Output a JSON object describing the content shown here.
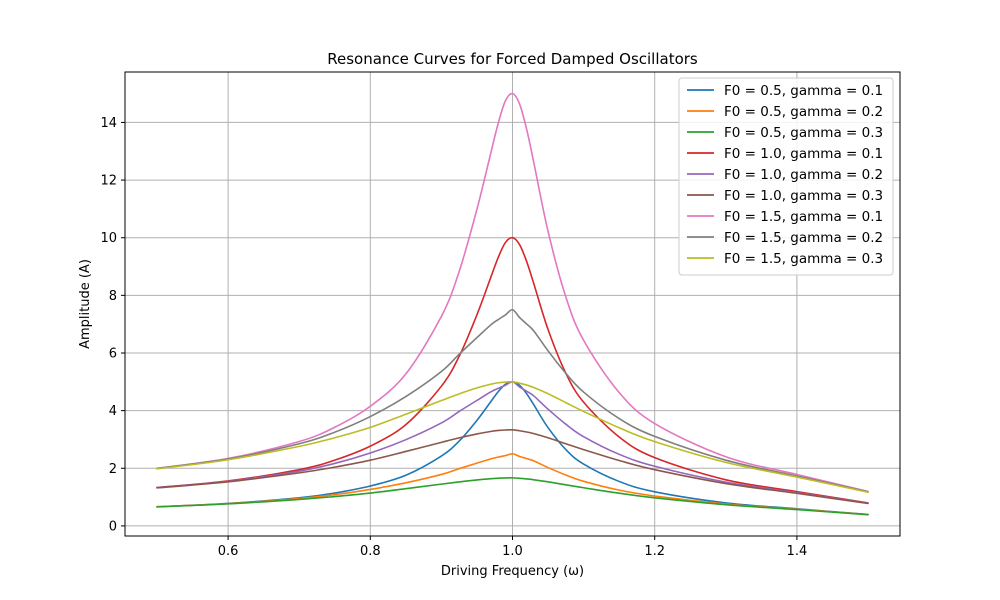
{
  "chart_data": {
    "type": "line",
    "title": "Resonance Curves for Forced Damped Oscillators",
    "xlabel": "Driving Frequency (ω)",
    "ylabel": "Amplitude (A)",
    "xlim": [
      0.455,
      1.545
    ],
    "ylim": [
      -0.35,
      15.75
    ],
    "xticks": [
      0.6,
      0.8,
      1.0,
      1.2,
      1.4
    ],
    "xtick_labels": [
      "0.6",
      "0.8",
      "1.0",
      "1.2",
      "1.4"
    ],
    "yticks": [
      0,
      2,
      4,
      6,
      8,
      10,
      12,
      14
    ],
    "ytick_labels": [
      "0",
      "2",
      "4",
      "6",
      "8",
      "10",
      "12",
      "14"
    ],
    "grid": true,
    "legend_position": "top-right",
    "x": [
      0.5,
      0.6,
      0.7,
      0.75,
      0.8,
      0.85,
      0.9,
      0.925,
      0.95,
      0.97,
      0.98,
      0.99,
      1.0,
      1.01,
      1.02,
      1.03,
      1.05,
      1.075,
      1.1,
      1.15,
      1.2,
      1.3,
      1.4,
      1.5
    ],
    "series": [
      {
        "name": "F0 = 0.5, gamma = 0.1",
        "color": "#1f77b4",
        "values": [
          0.667,
          0.78,
          0.976,
          1.141,
          1.384,
          1.758,
          2.424,
          2.943,
          3.663,
          4.33,
          4.66,
          4.916,
          5.0,
          4.879,
          4.584,
          4.201,
          3.407,
          2.649,
          2.147,
          1.543,
          1.184,
          0.8,
          0.595,
          0.399
        ]
      },
      {
        "name": "F0 = 0.5, gamma = 0.2",
        "color": "#ff7f0e",
        "values": [
          0.665,
          0.773,
          0.95,
          1.084,
          1.265,
          1.496,
          1.786,
          1.986,
          2.178,
          2.329,
          2.387,
          2.44,
          2.5,
          2.41,
          2.335,
          2.255,
          2.025,
          1.765,
          1.548,
          1.242,
          1.035,
          0.76,
          0.577,
          0.395
        ]
      },
      {
        "name": "F0 = 0.5, gamma = 0.3",
        "color": "#2ca02c",
        "values": [
          0.66,
          0.765,
          0.92,
          1.02,
          1.14,
          1.292,
          1.45,
          1.527,
          1.596,
          1.64,
          1.656,
          1.664,
          1.667,
          1.651,
          1.629,
          1.601,
          1.529,
          1.426,
          1.324,
          1.135,
          0.975,
          0.735,
          0.565,
          0.39
        ]
      },
      {
        "name": "F0 = 1.0, gamma = 0.1",
        "color": "#d62728",
        "values": [
          1.333,
          1.561,
          1.952,
          2.282,
          2.768,
          3.516,
          4.848,
          5.886,
          7.326,
          8.66,
          9.32,
          9.832,
          10.0,
          9.758,
          9.168,
          8.402,
          6.814,
          5.298,
          4.294,
          3.086,
          2.368,
          1.6,
          1.19,
          0.798
        ]
      },
      {
        "name": "F0 = 1.0, gamma = 0.2",
        "color": "#9467bd",
        "values": [
          1.33,
          1.546,
          1.9,
          2.168,
          2.53,
          2.992,
          3.572,
          3.972,
          4.356,
          4.658,
          4.774,
          4.88,
          5.0,
          4.82,
          4.67,
          4.51,
          4.05,
          3.53,
          3.096,
          2.484,
          2.07,
          1.52,
          1.154,
          0.79
        ]
      },
      {
        "name": "F0 = 1.0, gamma = 0.3",
        "color": "#8c564b",
        "values": [
          1.32,
          1.53,
          1.84,
          2.04,
          2.28,
          2.584,
          2.9,
          3.054,
          3.192,
          3.28,
          3.312,
          3.328,
          3.333,
          3.302,
          3.258,
          3.202,
          3.058,
          2.852,
          2.648,
          2.27,
          1.95,
          1.47,
          1.13,
          0.78
        ]
      },
      {
        "name": "F0 = 1.5, gamma = 0.1",
        "color": "#e377c2",
        "values": [
          2.0,
          2.342,
          2.928,
          3.423,
          4.152,
          5.274,
          7.272,
          8.829,
          10.989,
          12.99,
          13.98,
          14.748,
          15.0,
          14.637,
          13.752,
          12.603,
          10.221,
          7.947,
          6.441,
          4.629,
          3.552,
          2.4,
          1.785,
          1.197
        ]
      },
      {
        "name": "F0 = 1.5, gamma = 0.2",
        "color": "#7f7f7f",
        "values": [
          1.995,
          2.319,
          2.85,
          3.252,
          3.795,
          4.488,
          5.358,
          5.958,
          6.534,
          6.987,
          7.161,
          7.32,
          7.5,
          7.23,
          7.005,
          6.765,
          6.075,
          5.295,
          4.644,
          3.726,
          3.105,
          2.28,
          1.731,
          1.185
        ]
      },
      {
        "name": "F0 = 1.5, gamma = 0.3",
        "color": "#bcbd22",
        "values": [
          1.98,
          2.295,
          2.76,
          3.06,
          3.42,
          3.876,
          4.35,
          4.581,
          4.788,
          4.92,
          4.968,
          4.992,
          5.0,
          4.953,
          4.887,
          4.803,
          4.587,
          4.278,
          3.972,
          3.405,
          2.925,
          2.205,
          1.695,
          1.17
        ]
      }
    ]
  }
}
